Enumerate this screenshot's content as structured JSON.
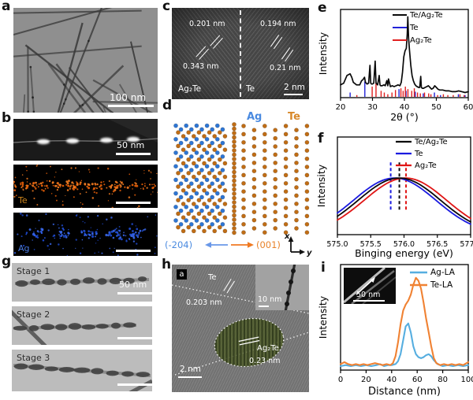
{
  "panel_letters": {
    "a": "a",
    "b": "b",
    "c": "c",
    "d": "d",
    "e": "e",
    "f": "f",
    "g": "g",
    "h": "h",
    "i": "i"
  },
  "panels": {
    "a": {
      "scale_bar": "100 nm"
    },
    "b": {
      "scale_bar": "50 nm",
      "te_label": "Te",
      "ag_label": "Ag"
    },
    "c": {
      "spacing_top_left": "0.201 nm",
      "spacing_bottom_left": "0.343 nm",
      "spacing_top_right": "0.194 nm",
      "spacing_bottom_right": "0.21 nm",
      "material_left": "Ag₂Te",
      "material_right": "Te",
      "scale_bar": "2 nm"
    },
    "d": {
      "legend_ag": "Ag",
      "legend_te": "Te",
      "plane_left": "(-204)",
      "plane_right": "(001)",
      "axis_x": "x",
      "axis_y": "y",
      "ag_color": "#2e76d4",
      "te_color": "#c06d15",
      "ag_label_color": "#4a8ae0",
      "te_label_color": "#d8882a"
    },
    "g": {
      "stages": [
        "Stage 1",
        "Stage 2",
        "Stage 3"
      ],
      "scale_bar": "50 nm"
    },
    "h": {
      "corner_label": "a",
      "te_label": "Te",
      "te_spacing": "0.203 nm",
      "ag2te_label": "Ag₂Te",
      "ag2te_spacing": "0.23 nm",
      "scale_bar": "2 nm",
      "inset_scale_bar": "10 nm"
    },
    "i": {
      "inset_scale_bar": "50 nm"
    }
  },
  "chart_data": [
    {
      "id": "e",
      "type": "line",
      "xlabel": "2θ (°)",
      "ylabel": "Intensity",
      "xlim": [
        20,
        60
      ],
      "xticks": [
        20,
        30,
        40,
        50,
        60
      ],
      "legend_position": "top-right",
      "series": [
        {
          "name": "Te/Ag₂Te",
          "color": "#0a0a0a",
          "x": [
            20,
            21,
            22,
            23,
            23.5,
            24,
            25,
            26,
            26.6,
            27,
            27.5,
            27.8,
            28.3,
            28.8,
            29.2,
            29.45,
            29.7,
            30,
            30.4,
            30.85,
            31.1,
            31.6,
            32.1,
            32.35,
            32.6,
            33,
            33.6,
            34,
            34.5,
            34.8,
            35,
            35.6,
            36.2,
            36.8,
            37.4,
            38,
            38.6,
            39,
            39.4,
            39.8,
            40.2,
            40.6,
            40.9,
            41.05,
            41.3,
            41.6,
            42,
            42.4,
            42.8,
            43.2,
            43.6,
            44,
            44.4,
            44.8,
            45.1,
            45.3,
            45.6,
            46,
            46.5,
            47,
            47.5,
            48,
            48.5,
            49,
            49.5,
            50,
            50.5,
            51,
            52,
            53,
            54,
            55,
            56,
            57,
            58,
            59,
            60
          ],
          "y": [
            15,
            17,
            26,
            28,
            24,
            18,
            15,
            15,
            20,
            21,
            24,
            18,
            16,
            17,
            38,
            17,
            16,
            16,
            17,
            43,
            17,
            15,
            26,
            15,
            14,
            14,
            15,
            14,
            20,
            14,
            22,
            13,
            14,
            13,
            14,
            15,
            14,
            18,
            30,
            48,
            55,
            58,
            75,
            95,
            70,
            55,
            38,
            26,
            20,
            16,
            14,
            13,
            12,
            12,
            25,
            12,
            11,
            11,
            12,
            13,
            14,
            12,
            10,
            11,
            14,
            12,
            10,
            9,
            9,
            8,
            8,
            7,
            7,
            8,
            7,
            6,
            7
          ]
        },
        {
          "name": "Te",
          "color": "#2222d8",
          "sticks": [
            [
              23,
              6
            ],
            [
              27.6,
              19
            ],
            [
              38.3,
              10
            ],
            [
              40.5,
              8
            ],
            [
              43.4,
              7
            ],
            [
              45.9,
              5
            ],
            [
              49.4,
              6
            ],
            [
              51.3,
              3
            ],
            [
              56.9,
              4
            ],
            [
              59,
              3
            ]
          ]
        },
        {
          "name": "Ag₂Te",
          "color": "#e02020",
          "sticks": [
            [
              25.1,
              3
            ],
            [
              29.9,
              13
            ],
            [
              31.1,
              18
            ],
            [
              32.7,
              8
            ],
            [
              33.7,
              6
            ],
            [
              34.8,
              4
            ],
            [
              36.1,
              6
            ],
            [
              37.2,
              9
            ],
            [
              38.9,
              11
            ],
            [
              39.6,
              8
            ],
            [
              40.3,
              13
            ],
            [
              41.1,
              10
            ],
            [
              42.3,
              8
            ],
            [
              43.1,
              11
            ],
            [
              44.1,
              6
            ],
            [
              45,
              5
            ],
            [
              46.3,
              6
            ],
            [
              47.6,
              5
            ],
            [
              48.3,
              4
            ],
            [
              50.4,
              3
            ],
            [
              52.2,
              4
            ],
            [
              53.6,
              3
            ],
            [
              55.3,
              3
            ],
            [
              57.4,
              4
            ],
            [
              58.7,
              3
            ]
          ]
        }
      ]
    },
    {
      "id": "f",
      "type": "line",
      "xlabel": "Binging energy (eV)",
      "ylabel": "Intensity",
      "xlim": [
        575.0,
        577.0
      ],
      "xticks": [
        575.0,
        575.5,
        576.0,
        576.5,
        577.0
      ],
      "xtick_labels": [
        "575.0",
        "575.5",
        "576.0",
        "576.5",
        "577.0"
      ],
      "legend_position": "top-right",
      "sigma": 0.62,
      "series": [
        {
          "name": "Te/Ag₂Te",
          "color": "#0a0a0a",
          "peak_center": 575.93
        },
        {
          "name": "Te",
          "color": "#1a1ae0",
          "peak_center": 575.86
        },
        {
          "name": "Ag₂Te",
          "color": "#e01515",
          "peak_center": 576.02
        }
      ],
      "dashed_markers": [
        {
          "x": 575.8,
          "color": "#1a1ae0"
        },
        {
          "x": 575.93,
          "color": "#0a0a0a"
        },
        {
          "x": 576.03,
          "color": "#e01515"
        }
      ]
    },
    {
      "id": "i",
      "type": "line",
      "xlabel": "Distance (nm)",
      "ylabel": "Intensity",
      "xlim": [
        0,
        100
      ],
      "xticks": [
        0,
        20,
        40,
        60,
        80,
        100
      ],
      "legend_position": "top-right",
      "inset_scale_bar": "50 nm",
      "series": [
        {
          "name": "Ag-LA",
          "color": "#56aee0",
          "x": [
            0,
            4,
            8,
            12,
            16,
            20,
            24,
            28,
            31,
            34,
            37,
            40,
            43,
            45,
            47,
            49,
            51,
            53,
            55,
            57,
            59,
            61,
            63,
            65,
            67,
            69,
            71,
            73,
            76,
            80,
            84,
            88,
            92,
            96,
            100
          ],
          "y": [
            4,
            5,
            4,
            5,
            4,
            5,
            4,
            5,
            6,
            4,
            5,
            5,
            6,
            9,
            16,
            30,
            44,
            47,
            38,
            24,
            16,
            13,
            12,
            13,
            15,
            16,
            14,
            10,
            6,
            4,
            5,
            4,
            5,
            4,
            5
          ]
        },
        {
          "name": "Te-LA",
          "color": "#f08233",
          "x": [
            0,
            3,
            6,
            9,
            12,
            15,
            18,
            21,
            24,
            27,
            30,
            33,
            36,
            39,
            41,
            43,
            45,
            47,
            49,
            51,
            53,
            55,
            57,
            59,
            61,
            63,
            65,
            67,
            69,
            71,
            73,
            75,
            78,
            81,
            84,
            87,
            90,
            93,
            96,
            100
          ],
          "y": [
            6,
            8,
            6,
            5,
            6,
            5,
            6,
            5,
            6,
            7,
            6,
            5,
            6,
            5,
            7,
            14,
            28,
            46,
            60,
            66,
            70,
            76,
            86,
            93,
            90,
            82,
            68,
            52,
            38,
            24,
            12,
            7,
            5,
            6,
            5,
            6,
            5,
            6,
            5,
            8
          ]
        }
      ]
    }
  ]
}
